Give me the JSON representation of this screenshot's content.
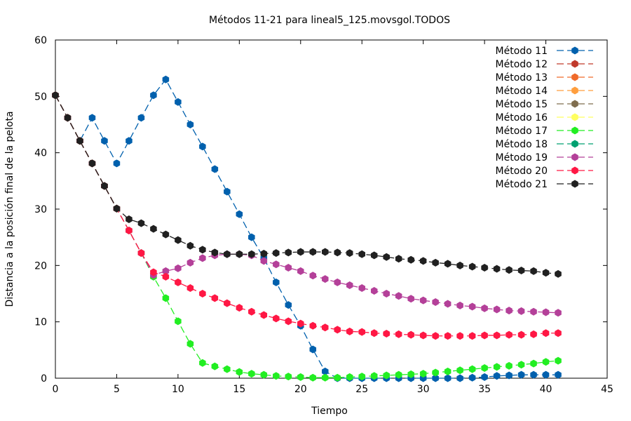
{
  "chart_data": {
    "type": "line",
    "title": "Métodos 11-21 para lineal5_125.movsgol.TODOS",
    "xlabel": "Tiempo",
    "ylabel": "Distancia a la posición final de la pelota",
    "xlim": [
      0,
      45
    ],
    "ylim": [
      0,
      60
    ],
    "xticks": [
      0,
      5,
      10,
      15,
      20,
      25,
      30,
      35,
      40,
      45
    ],
    "yticks": [
      0,
      10,
      20,
      30,
      40,
      50,
      60
    ],
    "grid": false,
    "legend_position": "top-right",
    "series": [
      {
        "name": "Método 11",
        "color": "#0060ad",
        "x": [
          0,
          1,
          2,
          3,
          4,
          5,
          6,
          7,
          8,
          9,
          10,
          11,
          12,
          13,
          14,
          15,
          16,
          17,
          18,
          19,
          20,
          21,
          22,
          23,
          24,
          25,
          26,
          27,
          28,
          29,
          30,
          31,
          32,
          33,
          34,
          35,
          36,
          37,
          38,
          39,
          40,
          41
        ],
        "y": [
          50.2,
          46.2,
          42.1,
          46.2,
          42.1,
          38.1,
          42.1,
          46.2,
          50.2,
          53,
          49,
          45,
          41.1,
          37.1,
          33.1,
          29.1,
          25,
          21.3,
          17,
          13,
          9.3,
          5.1,
          1.2,
          0,
          0,
          0,
          0,
          0,
          0,
          0,
          0,
          0,
          0,
          0,
          0.1,
          0.2,
          0.4,
          0.5,
          0.6,
          0.6,
          0.6,
          0.6
        ]
      },
      {
        "name": "Método 12",
        "color": "#c0392b",
        "x": [
          0,
          1,
          2,
          3,
          4,
          5
        ],
        "y": [
          50.2,
          46.2,
          42.1,
          38.1,
          34.1,
          30.1
        ]
      },
      {
        "name": "Método 13",
        "color": "#f06a2a",
        "x": [
          0,
          1,
          2,
          3,
          4,
          5
        ],
        "y": [
          50.2,
          46.2,
          42.1,
          38.1,
          34.1,
          30.1
        ]
      },
      {
        "name": "Método 14",
        "color": "#ff9e3d",
        "x": [
          0,
          1,
          2,
          3,
          4,
          5
        ],
        "y": [
          50.2,
          46.2,
          42.1,
          38.1,
          34.1,
          30.1
        ]
      },
      {
        "name": "Método 15",
        "color": "#7f6d4e",
        "x": [
          0,
          1,
          2,
          3,
          4,
          5
        ],
        "y": [
          50.2,
          46.2,
          42.1,
          38.1,
          34.1,
          30.1
        ]
      },
      {
        "name": "Método 16",
        "color": "#ffff60",
        "x": [
          0,
          1,
          2,
          3,
          4,
          5
        ],
        "y": [
          50.2,
          46.2,
          42.1,
          38.1,
          34.1,
          30.1
        ]
      },
      {
        "name": "Método 17",
        "color": "#22ee22",
        "x": [
          0,
          1,
          2,
          3,
          4,
          5,
          6,
          7,
          8,
          9,
          10,
          11,
          12,
          13,
          14,
          15,
          16,
          17,
          18,
          19,
          20,
          21,
          22,
          23,
          24,
          25,
          26,
          27,
          28,
          29,
          30,
          31,
          32,
          33,
          34,
          35,
          36,
          37,
          38,
          39,
          40,
          41
        ],
        "y": [
          50.2,
          46.2,
          42.1,
          38.1,
          34.1,
          30.1,
          26.2,
          22.2,
          18,
          14.2,
          10.1,
          6.1,
          2.7,
          2.1,
          1.6,
          1.1,
          0.8,
          0.6,
          0.4,
          0.3,
          0.2,
          0.1,
          0.1,
          0.1,
          0.2,
          0.3,
          0.4,
          0.5,
          0.6,
          0.7,
          0.8,
          1,
          1.2,
          1.4,
          1.6,
          1.8,
          2,
          2.2,
          2.4,
          2.6,
          2.9,
          3.1
        ]
      },
      {
        "name": "Método 18",
        "color": "#00a070",
        "x": [
          0,
          1,
          2,
          3,
          4,
          5
        ],
        "y": [
          50.2,
          46.2,
          42.1,
          38.1,
          34.1,
          30.1
        ]
      },
      {
        "name": "Método 19",
        "color": "#b44099",
        "x": [
          0,
          1,
          2,
          3,
          4,
          5,
          6,
          7,
          8,
          9,
          10,
          11,
          12,
          13,
          14,
          15,
          16,
          17,
          18,
          19,
          20,
          21,
          22,
          23,
          24,
          25,
          26,
          27,
          28,
          29,
          30,
          31,
          32,
          33,
          34,
          35,
          36,
          37,
          38,
          39,
          40,
          41
        ],
        "y": [
          50.2,
          46.2,
          42.1,
          38.1,
          34.1,
          30.1,
          26.2,
          22.2,
          18.3,
          19,
          19.5,
          20.5,
          21.3,
          21.8,
          22,
          22,
          21.8,
          20.8,
          20.2,
          19.6,
          19,
          18.2,
          17.6,
          17,
          16.5,
          16,
          15.5,
          15,
          14.6,
          14.1,
          13.8,
          13.5,
          13.2,
          12.9,
          12.7,
          12.4,
          12.2,
          12,
          11.9,
          11.8,
          11.7,
          11.6
        ]
      },
      {
        "name": "Método 20",
        "color": "#ff1744",
        "x": [
          0,
          1,
          2,
          3,
          4,
          5,
          6,
          7,
          8,
          9,
          10,
          11,
          12,
          13,
          14,
          15,
          16,
          17,
          18,
          19,
          20,
          21,
          22,
          23,
          24,
          25,
          26,
          27,
          28,
          29,
          30,
          31,
          32,
          33,
          34,
          35,
          36,
          37,
          38,
          39,
          40,
          41
        ],
        "y": [
          50.2,
          46.2,
          42.1,
          38.1,
          34.1,
          30.1,
          26.2,
          22.2,
          18.8,
          18,
          17,
          16,
          15,
          14.2,
          13.3,
          12.5,
          11.8,
          11.2,
          10.6,
          10.1,
          9.7,
          9.3,
          9,
          8.6,
          8.3,
          8.2,
          8,
          7.9,
          7.8,
          7.7,
          7.6,
          7.5,
          7.5,
          7.5,
          7.5,
          7.6,
          7.6,
          7.7,
          7.7,
          7.8,
          8,
          8
        ]
      },
      {
        "name": "Método 21",
        "color": "#202020",
        "x": [
          0,
          1,
          2,
          3,
          4,
          5,
          6,
          7,
          8,
          9,
          10,
          11,
          12,
          13,
          14,
          15,
          16,
          17,
          18,
          19,
          20,
          21,
          22,
          23,
          24,
          25,
          26,
          27,
          28,
          29,
          30,
          31,
          32,
          33,
          34,
          35,
          36,
          37,
          38,
          39,
          40,
          41
        ],
        "y": [
          50.2,
          46.2,
          42.1,
          38.1,
          34.1,
          30.1,
          28.2,
          27.5,
          26.5,
          25.5,
          24.5,
          23.5,
          22.8,
          22.3,
          22,
          22,
          22,
          22.1,
          22.2,
          22.3,
          22.4,
          22.4,
          22.4,
          22.3,
          22.2,
          22,
          21.8,
          21.5,
          21.2,
          21,
          20.8,
          20.5,
          20.3,
          20,
          19.8,
          19.6,
          19.4,
          19.2,
          19.1,
          19,
          18.7,
          18.5
        ]
      }
    ]
  }
}
